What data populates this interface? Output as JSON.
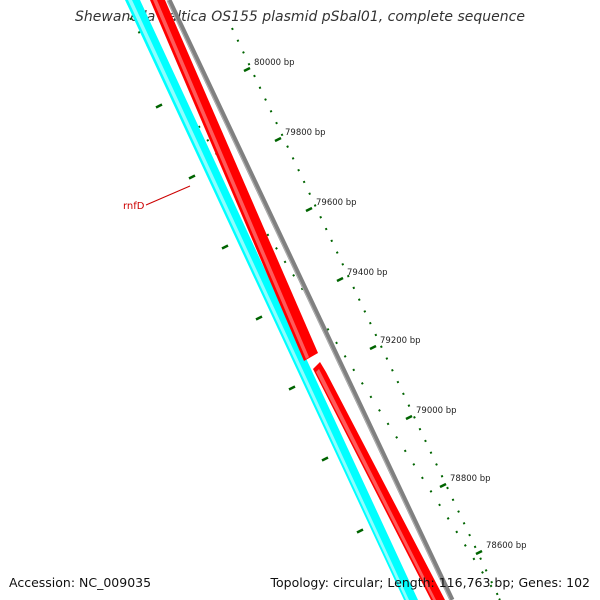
{
  "title": "Shewanella baltica OS155 plasmid pSbal01, complete sequence",
  "accession": "Accession: NC_009035",
  "summary": "Topology: circular; Length: 116,763 bp; Genes: 102",
  "scale_labels": [
    "80000 bp",
    "79800 bp",
    "79600 bp",
    "79400 bp",
    "79200 bp",
    "79000 bp",
    "78800 bp",
    "78600 bp"
  ],
  "gene_labels": [
    "rnfD"
  ],
  "colors": {
    "forward_cds": "#ff0000",
    "reverse_cds": "#00ffff",
    "backbone": "#808080",
    "ticks": "#006400",
    "label": "#cc0000"
  }
}
